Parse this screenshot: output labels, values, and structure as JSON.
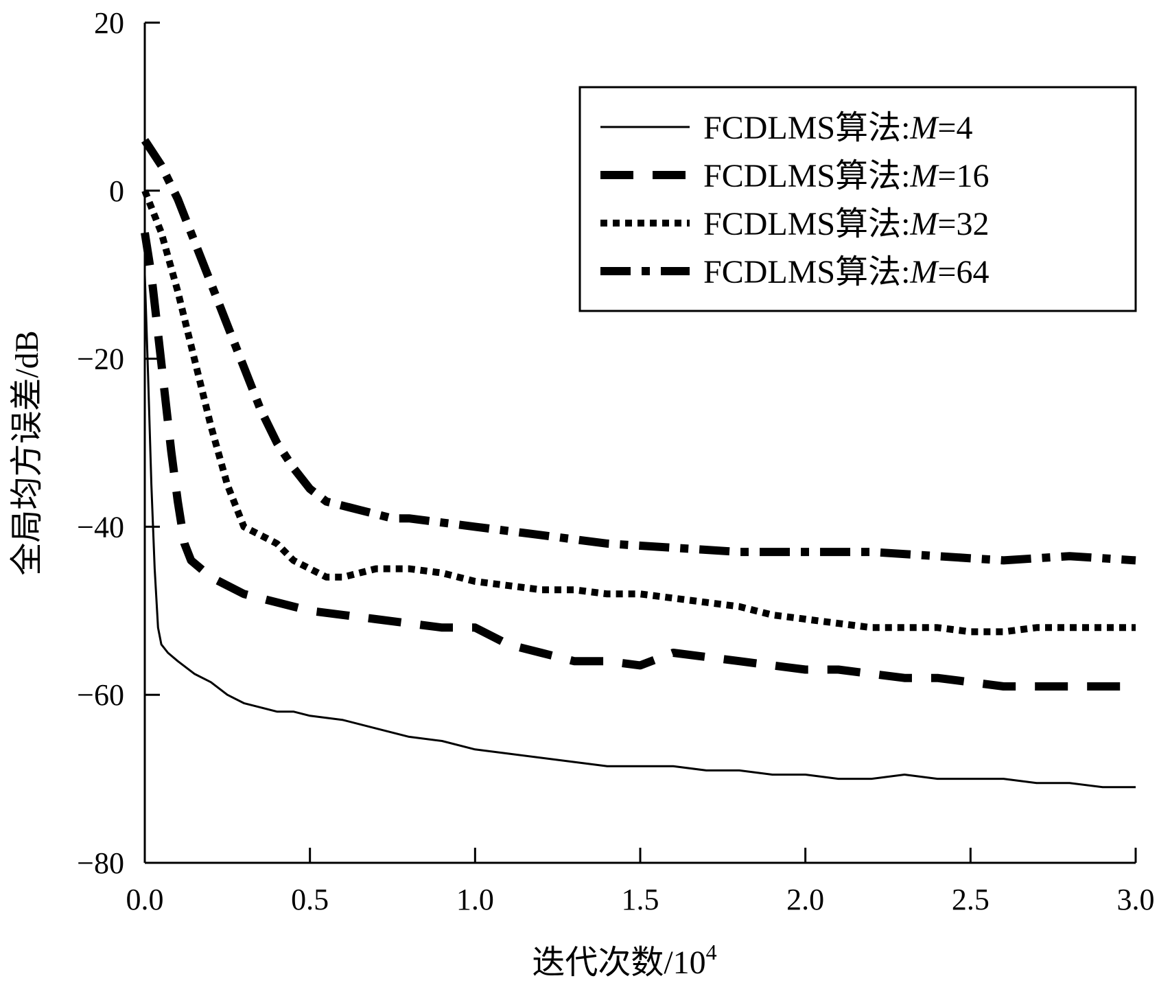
{
  "chart_data": {
    "type": "line",
    "xlabel": "迭代次数/10",
    "xlabel_sup": "4",
    "ylabel": "全局均方误差/dB",
    "xlim": [
      0,
      3.0
    ],
    "ylim": [
      -80,
      20
    ],
    "x_ticks": [
      "0.0",
      "0.5",
      "1.0",
      "1.5",
      "2.0",
      "2.5",
      "3.0"
    ],
    "y_ticks": [
      "20",
      "0",
      "−20",
      "−40",
      "−60",
      "−80"
    ],
    "legend_position": "top-right",
    "legend_prefix": "FCDLMS算法:",
    "legend_var": "M",
    "grid": false,
    "series": [
      {
        "name": "FCDLMS算法:M=4",
        "legend_value": "=4",
        "style": "solid",
        "x": [
          0,
          0.01,
          0.02,
          0.03,
          0.04,
          0.05,
          0.07,
          0.1,
          0.15,
          0.2,
          0.25,
          0.3,
          0.35,
          0.4,
          0.45,
          0.5,
          0.6,
          0.7,
          0.8,
          0.9,
          1.0,
          1.1,
          1.2,
          1.3,
          1.4,
          1.5,
          1.6,
          1.7,
          1.8,
          1.9,
          2.0,
          2.1,
          2.2,
          2.3,
          2.4,
          2.5,
          2.6,
          2.7,
          2.8,
          2.9,
          3.0
        ],
        "values": [
          -10,
          -22,
          -35,
          -45,
          -52,
          -54,
          -55,
          -56,
          -57.5,
          -58.5,
          -60,
          -61,
          -61.5,
          -62,
          -62,
          -62.5,
          -63,
          -64,
          -65,
          -65.5,
          -66.5,
          -67,
          -67.5,
          -68,
          -68.5,
          -68.5,
          -68.5,
          -69,
          -69,
          -69.5,
          -69.5,
          -70,
          -70,
          -69.5,
          -70,
          -70,
          -70,
          -70.5,
          -70.5,
          -71,
          -71
        ]
      },
      {
        "name": "FCDLMS算法:M=16",
        "legend_value": "=16",
        "style": "dashed",
        "x": [
          0,
          0.02,
          0.04,
          0.06,
          0.08,
          0.1,
          0.12,
          0.14,
          0.2,
          0.3,
          0.4,
          0.5,
          0.6,
          0.7,
          0.8,
          0.9,
          1.0,
          1.1,
          1.2,
          1.3,
          1.4,
          1.5,
          1.6,
          1.7,
          1.8,
          1.9,
          2.0,
          2.1,
          2.2,
          2.3,
          2.4,
          2.5,
          2.6,
          2.7,
          2.8,
          2.9,
          3.0
        ],
        "values": [
          -5,
          -10,
          -17,
          -24,
          -31,
          -37,
          -42,
          -44,
          -46,
          -48,
          -49,
          -50,
          -50.5,
          -51,
          -51.5,
          -52,
          -52,
          -54,
          -55,
          -56,
          -56,
          -56.5,
          -55,
          -55.5,
          -56,
          -56.5,
          -57,
          -57,
          -57.5,
          -58,
          -58,
          -58.5,
          -59,
          -59,
          -59,
          -59,
          -59
        ]
      },
      {
        "name": "FCDLMS算法:M=32",
        "legend_value": "=32",
        "style": "dotted",
        "x": [
          0,
          0.05,
          0.1,
          0.15,
          0.2,
          0.25,
          0.3,
          0.35,
          0.4,
          0.45,
          0.5,
          0.55,
          0.6,
          0.65,
          0.7,
          0.8,
          0.9,
          1.0,
          1.1,
          1.2,
          1.3,
          1.4,
          1.5,
          1.6,
          1.7,
          1.8,
          1.9,
          2.0,
          2.1,
          2.2,
          2.3,
          2.4,
          2.5,
          2.6,
          2.7,
          2.8,
          2.9,
          3.0
        ],
        "values": [
          0,
          -5,
          -12,
          -20,
          -28,
          -35,
          -40,
          -41,
          -42,
          -44,
          -45,
          -46,
          -46,
          -45.5,
          -45,
          -45,
          -45.5,
          -46.5,
          -47,
          -47.5,
          -47.5,
          -48,
          -48,
          -48.5,
          -49,
          -49.5,
          -50.5,
          -51,
          -51.5,
          -52,
          -52,
          -52,
          -52.5,
          -52.5,
          -52,
          -52,
          -52,
          -52
        ]
      },
      {
        "name": "FCDLMS算法:M=64",
        "legend_value": "=64",
        "style": "dashdot",
        "x": [
          0,
          0.05,
          0.1,
          0.15,
          0.2,
          0.25,
          0.3,
          0.35,
          0.4,
          0.45,
          0.5,
          0.55,
          0.6,
          0.65,
          0.7,
          0.75,
          0.8,
          0.9,
          1.0,
          1.2,
          1.4,
          1.6,
          1.8,
          2.0,
          2.2,
          2.4,
          2.6,
          2.8,
          3.0
        ],
        "values": [
          6,
          3,
          -1,
          -6,
          -11,
          -16,
          -21,
          -26,
          -30,
          -33,
          -35.5,
          -37,
          -37.5,
          -38,
          -38.5,
          -39,
          -39,
          -39.5,
          -40,
          -41,
          -42,
          -42.5,
          -43,
          -43,
          -43,
          -43.5,
          -44,
          -43.5,
          -44
        ]
      }
    ]
  }
}
